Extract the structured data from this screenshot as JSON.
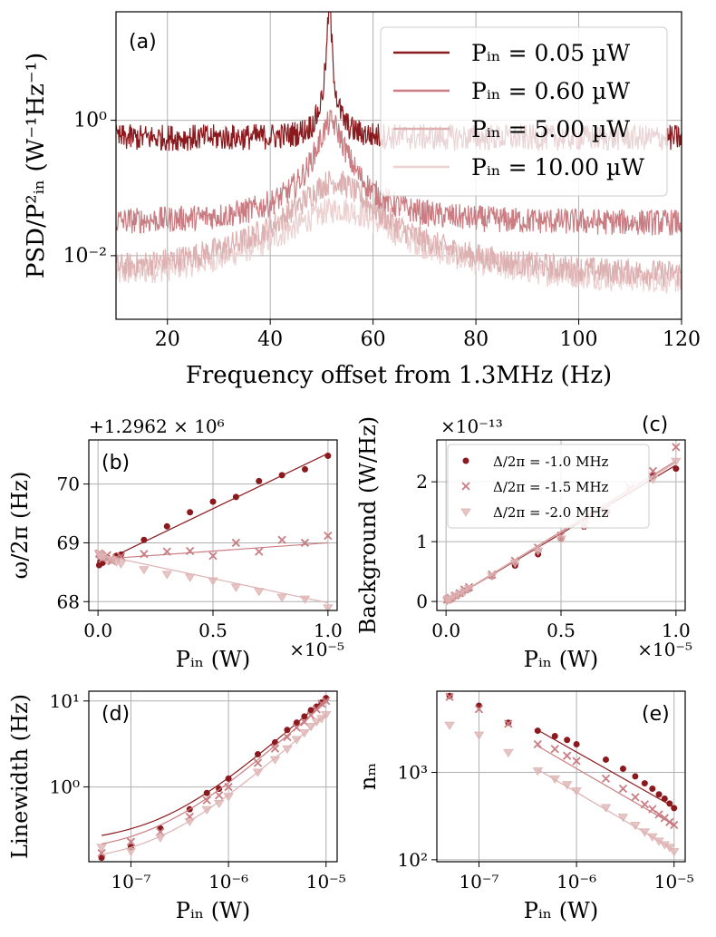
{
  "colors": {
    "c1": "#8b1a1e",
    "c2": "#c97d82",
    "c3": "#ddb1b2",
    "c4": "#ecd1d1",
    "grid": "#b0b0b0",
    "axis": "#000000"
  },
  "chart_data": [
    {
      "id": "a",
      "type": "line",
      "panel_label": "(a)",
      "xlabel": "Frequency offset from 1.3MHz (Hz)",
      "ylabel": "PSD/P²ᵢₙ (W⁻¹Hz⁻¹)",
      "xlim": [
        10,
        120
      ],
      "ylog": true,
      "xticks": [
        20,
        40,
        60,
        80,
        100,
        120
      ],
      "xtick_labels": [
        "20",
        "40",
        "60",
        "80",
        "100",
        "120"
      ],
      "yticks": [
        1,
        0.01
      ],
      "ytick_labels": [
        "10⁰",
        "10⁻²"
      ],
      "grid": true,
      "legend_position": "top-right",
      "series": [
        {
          "name": "Pᵢₙ = 0.05 µW",
          "floor": 0.55,
          "peak": 60,
          "center": 51.5,
          "width": 0.25
        },
        {
          "name": "Pᵢₙ = 0.60 µW",
          "floor": 0.03,
          "peak": 0.9,
          "center": 51.8,
          "width": 2.2
        },
        {
          "name": "Pᵢₙ = 5.00 µW",
          "floor": 0.0045,
          "peak": 0.12,
          "center": 52.5,
          "width": 6.0
        },
        {
          "name": "Pᵢₙ = 10.00 µW",
          "floor": 0.0035,
          "peak": 0.045,
          "center": 53.5,
          "width": 9.0
        }
      ]
    },
    {
      "id": "b",
      "type": "scatter",
      "panel_label": "(b)",
      "offset_label": "+1.2962 × 10⁶",
      "x_exponent_label": "×10⁻⁵",
      "xlabel": "Pᵢₙ (W)",
      "ylabel": "ω/2π (Hz)",
      "xlim": [
        -0.04,
        1.04
      ],
      "ylim": [
        67.85,
        70.75
      ],
      "xticks": [
        0,
        0.5,
        1.0
      ],
      "xtick_labels": [
        "0.0",
        "0.5",
        "1.0"
      ],
      "yticks": [
        68,
        69,
        70
      ],
      "ytick_labels": [
        "68",
        "69",
        "70"
      ],
      "grid": true,
      "x": [
        0.005,
        0.01,
        0.02,
        0.04,
        0.06,
        0.08,
        0.1,
        0.2,
        0.3,
        0.4,
        0.5,
        0.6,
        0.7,
        0.8,
        0.9,
        1.0
      ],
      "series": [
        {
          "name": "Δ/2π = -1.0 MHz",
          "marker": "circle",
          "values": [
            68.62,
            68.68,
            68.66,
            68.75,
            68.7,
            68.78,
            68.8,
            69.05,
            69.28,
            69.52,
            69.7,
            69.78,
            70.05,
            70.15,
            70.25,
            70.48
          ],
          "fit": [
            68.65,
            70.52
          ]
        },
        {
          "name": "Δ/2π = -1.5 MHz",
          "marker": "x",
          "values": [
            68.82,
            68.8,
            68.73,
            68.79,
            68.69,
            68.74,
            68.77,
            68.81,
            68.85,
            68.86,
            68.78,
            69.0,
            68.85,
            69.05,
            69.0,
            69.12
          ],
          "fit": [
            68.72,
            69.0
          ]
        },
        {
          "name": "Δ/2π = -2.0 MHz",
          "marker": "triangle",
          "values": [
            68.82,
            68.78,
            68.77,
            68.71,
            68.72,
            68.68,
            68.65,
            68.55,
            68.47,
            68.42,
            68.36,
            68.25,
            68.18,
            68.08,
            68.05,
            67.9
          ],
          "fit": [
            68.8,
            67.98
          ]
        }
      ]
    },
    {
      "id": "c",
      "type": "scatter",
      "panel_label": "(c)",
      "offset_label": "×10⁻¹³",
      "x_exponent_label": "×10⁻⁵",
      "xlabel": "Pᵢₙ (W)",
      "ylabel": "Background (W/Hz)",
      "xlim": [
        -0.04,
        1.04
      ],
      "ylim": [
        -0.15,
        2.7
      ],
      "xticks": [
        0,
        0.5,
        1.0
      ],
      "xtick_labels": [
        "0.0",
        "0.5",
        "1.0"
      ],
      "yticks": [
        0,
        1,
        2
      ],
      "ytick_labels": [
        "0",
        "1",
        "2"
      ],
      "grid": true,
      "legend_position": "upper-center",
      "x": [
        0.005,
        0.01,
        0.02,
        0.04,
        0.06,
        0.08,
        0.1,
        0.2,
        0.3,
        0.4,
        0.5,
        0.6,
        0.7,
        0.8,
        0.9,
        1.0
      ],
      "series": [
        {
          "name": "Δ/2π = -1.0 MHz",
          "marker": "circle",
          "values": [
            0.02,
            0.02,
            0.04,
            0.09,
            0.13,
            0.18,
            0.21,
            0.42,
            0.6,
            0.79,
            1.05,
            1.25,
            1.5,
            1.85,
            2.1,
            2.22
          ],
          "fit": [
            0.0,
            2.28
          ]
        },
        {
          "name": "Δ/2π = -1.5 MHz",
          "marker": "x",
          "values": [
            0.03,
            0.04,
            0.06,
            0.1,
            0.14,
            0.2,
            0.24,
            0.45,
            0.68,
            0.9,
            1.1,
            1.3,
            1.55,
            1.9,
            2.18,
            2.58
          ],
          "fit": [
            0.0,
            2.35
          ]
        },
        {
          "name": "Δ/2π = -2.0 MHz",
          "marker": "triangle",
          "values": [
            0.02,
            0.04,
            0.05,
            0.09,
            0.13,
            0.17,
            0.22,
            0.43,
            0.65,
            0.85,
            1.05,
            1.28,
            1.6,
            1.85,
            2.05,
            2.35
          ],
          "fit": [
            0.0,
            2.32
          ]
        }
      ]
    },
    {
      "id": "d",
      "type": "scatter",
      "panel_label": "(d)",
      "xlabel": "Pᵢₙ (W)",
      "ylabel": "Linewidth (Hz)",
      "xlog": true,
      "ylog": true,
      "xlim": [
        3.7e-08,
        1.3e-05
      ],
      "ylim": [
        0.135,
        13
      ],
      "xticks": [
        1e-07,
        1e-06,
        1e-05
      ],
      "xtick_labels": [
        "10⁻⁷",
        "10⁻⁶",
        "10⁻⁵"
      ],
      "yticks": [
        1,
        10
      ],
      "ytick_labels": [
        "10⁰",
        "10¹"
      ],
      "grid": true,
      "x": [
        5e-08,
        1e-07,
        2e-07,
        4e-07,
        6e-07,
        8e-07,
        1e-06,
        2e-06,
        3e-06,
        4e-06,
        5e-06,
        6e-06,
        7e-06,
        8e-06,
        9e-06,
        1e-05
      ],
      "series": [
        {
          "name": "Δ/2π = -1.0 MHz",
          "marker": "circle",
          "values": [
            0.15,
            0.2,
            0.33,
            0.55,
            0.85,
            0.95,
            1.25,
            2.4,
            3.3,
            4.6,
            5.6,
            6.6,
            7.8,
            8.6,
            9.6,
            10.8
          ],
          "fit_floor": 0.22,
          "fit_slope": 1060000.0
        },
        {
          "name": "Δ/2π = -1.5 MHz",
          "marker": "x",
          "values": [
            0.17,
            0.23,
            0.3,
            0.45,
            0.7,
            0.8,
            1.0,
            1.9,
            2.8,
            3.8,
            4.9,
            5.7,
            6.8,
            8.0,
            9.3,
            10.0
          ],
          "fit_floor": 0.17,
          "fit_slope": 950000.0
        },
        {
          "name": "Δ/2π = -2.0 MHz",
          "marker": "triangle",
          "values": [
            0.2,
            0.18,
            0.26,
            0.4,
            0.55,
            0.65,
            0.78,
            1.5,
            2.1,
            2.8,
            3.6,
            4.3,
            5.1,
            5.8,
            6.3,
            7.0
          ],
          "fit_floor": 0.13,
          "fit_slope": 680000.0
        }
      ]
    },
    {
      "id": "e",
      "type": "scatter",
      "panel_label": "(e)",
      "xlabel": "Pᵢₙ (W)",
      "ylabel": "nₘ",
      "xlog": true,
      "ylog": true,
      "xlim": [
        3.7e-08,
        1.3e-05
      ],
      "ylim": [
        95,
        8500
      ],
      "xticks": [
        1e-07,
        1e-06,
        1e-05
      ],
      "xtick_labels": [
        "10⁻⁷",
        "10⁻⁶",
        "10⁻⁵"
      ],
      "yticks": [
        100,
        1000
      ],
      "ytick_labels": [
        "10²",
        "10³"
      ],
      "grid": true,
      "x": [
        5e-08,
        1e-07,
        2e-07,
        4e-07,
        6e-07,
        8e-07,
        1e-06,
        2e-06,
        3e-06,
        4e-06,
        5e-06,
        6e-06,
        7e-06,
        8e-06,
        9e-06,
        1e-05
      ],
      "series": [
        {
          "name": "Δ/2π = -1.0 MHz",
          "marker": "circle",
          "values": [
            7500,
            5800,
            3700,
            3000,
            2600,
            2350,
            2100,
            1400,
            1100,
            900,
            750,
            650,
            560,
            500,
            440,
            390
          ],
          "fit_from": 4e-07,
          "fit_to": 1e-05,
          "fit": [
            3050,
            400
          ]
        },
        {
          "name": "Δ/2π = -1.5 MHz",
          "marker": "x",
          "values": [
            7300,
            5300,
            3600,
            2100,
            1850,
            1550,
            1350,
            850,
            650,
            520,
            430,
            380,
            330,
            300,
            270,
            250
          ],
          "fit_from": 4e-07,
          "fit_to": 1e-05,
          "fit": [
            2000,
            250
          ]
        },
        {
          "name": "Δ/2π = -2.0 MHz",
          "marker": "triangle",
          "values": [
            3500,
            2700,
            1700,
            1050,
            850,
            730,
            620,
            400,
            310,
            250,
            210,
            185,
            165,
            150,
            140,
            125
          ],
          "fit_from": 4e-07,
          "fit_to": 1e-05,
          "fit": [
            1080,
            130
          ]
        }
      ]
    }
  ]
}
